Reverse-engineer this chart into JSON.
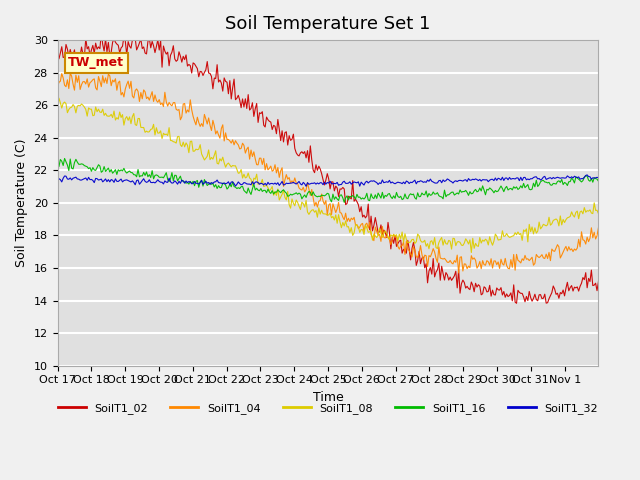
{
  "title": "Soil Temperature Set 1",
  "xlabel": "Time",
  "ylabel": "Soil Temperature (C)",
  "ylim": [
    10,
    30
  ],
  "annotation": "TW_met",
  "x_tick_labels": [
    "Oct 17",
    "Oct 18",
    "Oct 19",
    "Oct 20",
    "Oct 21",
    "Oct 22",
    "Oct 23",
    "Oct 24",
    "Oct 25",
    "Oct 26",
    "Oct 27",
    "Oct 28",
    "Oct 29",
    "Oct 30",
    "Oct 31",
    "Nov 1"
  ],
  "series": [
    {
      "label": "SoilT1_02",
      "color": "#cc0000"
    },
    {
      "label": "SoilT1_04",
      "color": "#ff8800"
    },
    {
      "label": "SoilT1_08",
      "color": "#ddcc00"
    },
    {
      "label": "SoilT1_16",
      "color": "#00bb00"
    },
    {
      "label": "SoilT1_32",
      "color": "#0000cc"
    }
  ],
  "series_params": [
    [
      8.5,
      0.0,
      0.4
    ],
    [
      6.0,
      0.3,
      0.3
    ],
    [
      4.5,
      0.6,
      0.25
    ],
    [
      1.2,
      1.2,
      0.15
    ],
    [
      0.3,
      2.0,
      0.08
    ]
  ],
  "bg_color": "#e0e0e0",
  "grid_color": "#ffffff",
  "title_fontsize": 13
}
